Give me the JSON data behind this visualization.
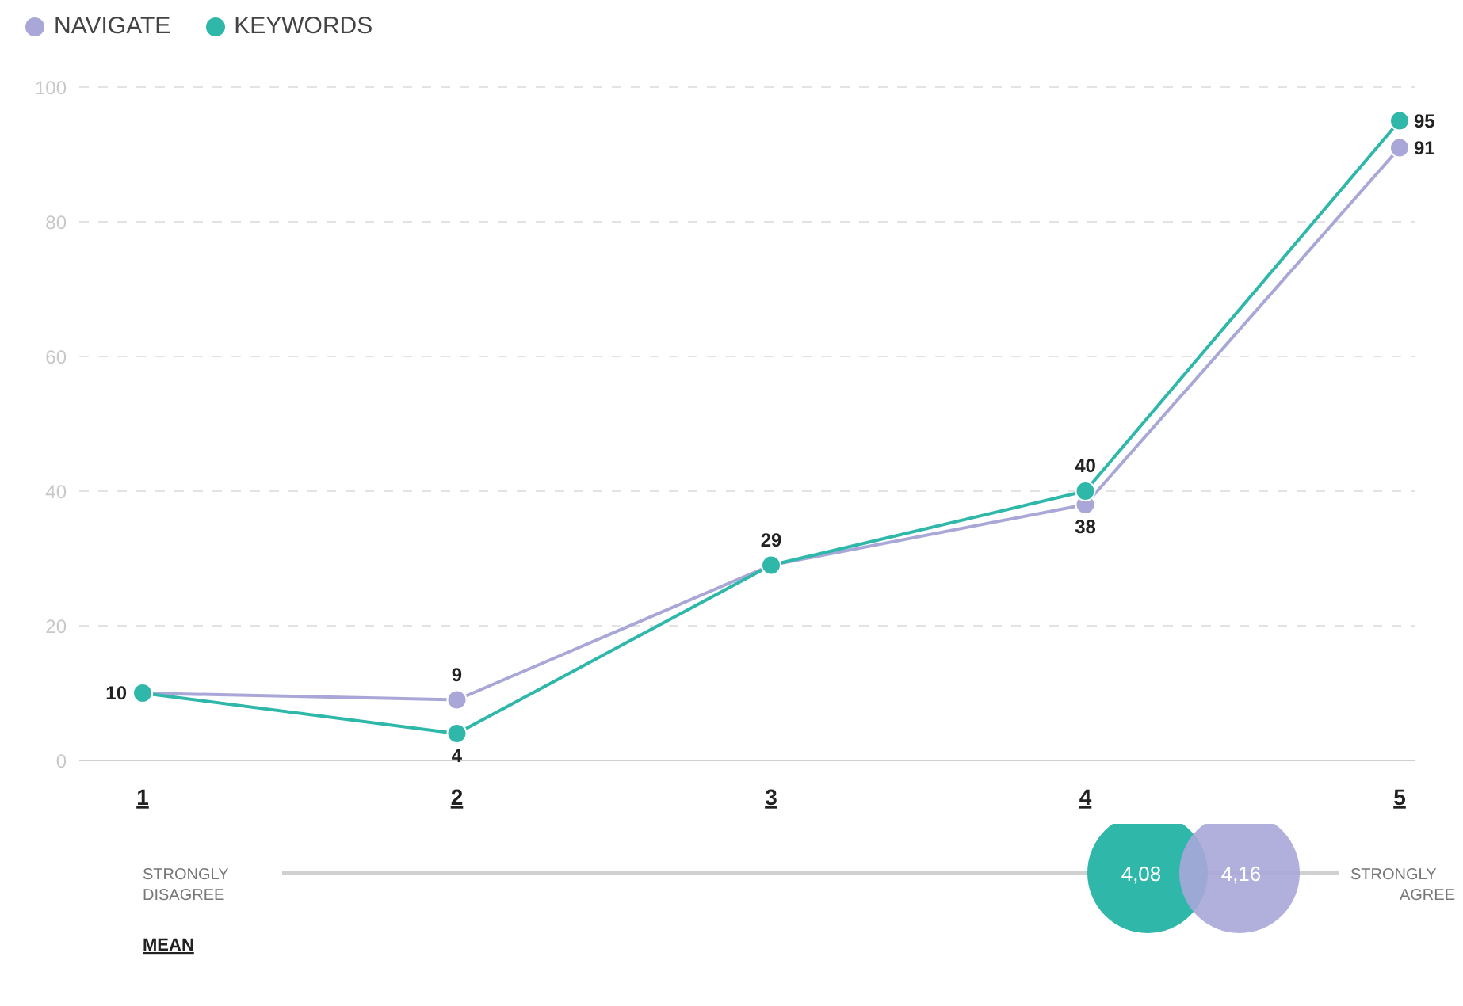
{
  "chart_data": {
    "type": "line",
    "categories": [
      "1",
      "2",
      "3",
      "4",
      "5"
    ],
    "series": [
      {
        "name": "NAVIGATE",
        "color": "#a9a7d8",
        "values": [
          10,
          9,
          29,
          38,
          91
        ],
        "value_labels": [
          null,
          "9",
          null,
          "38",
          "91"
        ]
      },
      {
        "name": "KEYWORDS",
        "color": "#2fb8aa",
        "values": [
          10,
          4,
          29,
          40,
          95
        ],
        "value_labels": [
          "10",
          "4",
          "29",
          "40",
          "95"
        ]
      }
    ],
    "ylim": [
      0,
      100
    ],
    "yticks": [
      0,
      20,
      40,
      60,
      80,
      100
    ],
    "grid": "y",
    "legend": "top left",
    "marker": "circle",
    "line_style": "solid",
    "annotations": [
      "STRONGLY DISAGREE",
      "STRONGLY AGREE",
      "MEAN",
      "4,08",
      "4,16"
    ]
  }
}
